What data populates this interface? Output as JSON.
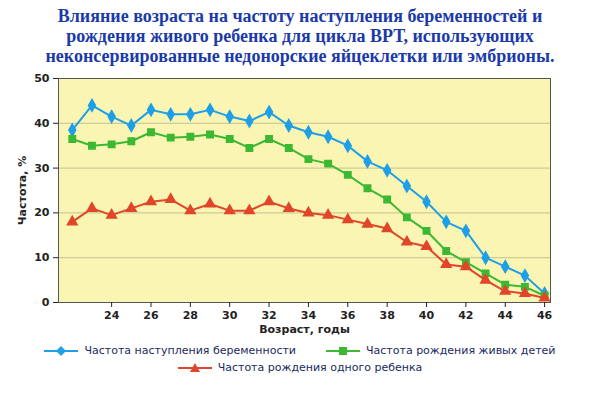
{
  "chart_data": {
    "type": "line",
    "title": "Влияние возраста на частоту наступления беременностей и рождения живого ребенка для цикла ВРТ, использующих неконсервированные недонорские яйцеклетки или эмбрионы.",
    "xlabel": "Возраст, годы",
    "ylabel": "Частота, %",
    "x": [
      22,
      23,
      24,
      25,
      26,
      27,
      28,
      29,
      30,
      31,
      32,
      33,
      34,
      35,
      36,
      37,
      38,
      39,
      40,
      41,
      42,
      43,
      44,
      45,
      46
    ],
    "series": [
      {
        "name": "Частота наступления беременности",
        "color": "#1e9fe6",
        "marker": "diamond",
        "values": [
          38.5,
          44,
          41.5,
          39.5,
          43,
          42,
          42,
          43,
          41.5,
          40.5,
          42.5,
          39.5,
          38,
          37,
          35,
          31.5,
          29.5,
          26,
          22.5,
          18,
          16,
          10,
          8,
          6,
          2
        ]
      },
      {
        "name": "Частота рождения живых детей",
        "color": "#3cb832",
        "marker": "square",
        "values": [
          36.5,
          35,
          35.3,
          36,
          38,
          36.8,
          37,
          37.5,
          36.5,
          34.5,
          36.5,
          34.5,
          32,
          31,
          28.5,
          25.5,
          23,
          19,
          16,
          11.5,
          9,
          6.5,
          4,
          3.5,
          1.5
        ]
      },
      {
        "name": "Частота рождения одного ребенка",
        "color": "#e0462a",
        "marker": "triangle",
        "values": [
          18,
          21,
          19.5,
          21,
          22.5,
          23,
          20.5,
          22,
          20.5,
          20.5,
          22.5,
          21,
          20,
          19.5,
          18.5,
          17.5,
          16.5,
          13.5,
          12.5,
          8.5,
          8,
          5,
          2.5,
          2,
          1
        ]
      }
    ],
    "xlim": [
      21.3,
      46.3
    ],
    "xticks": [
      24,
      26,
      28,
      30,
      32,
      34,
      36,
      38,
      40,
      42,
      44,
      46
    ],
    "ylim": [
      0,
      50
    ],
    "yticks": [
      0,
      10,
      20,
      30,
      40,
      50
    ],
    "grid": true,
    "legend": "bottom"
  }
}
